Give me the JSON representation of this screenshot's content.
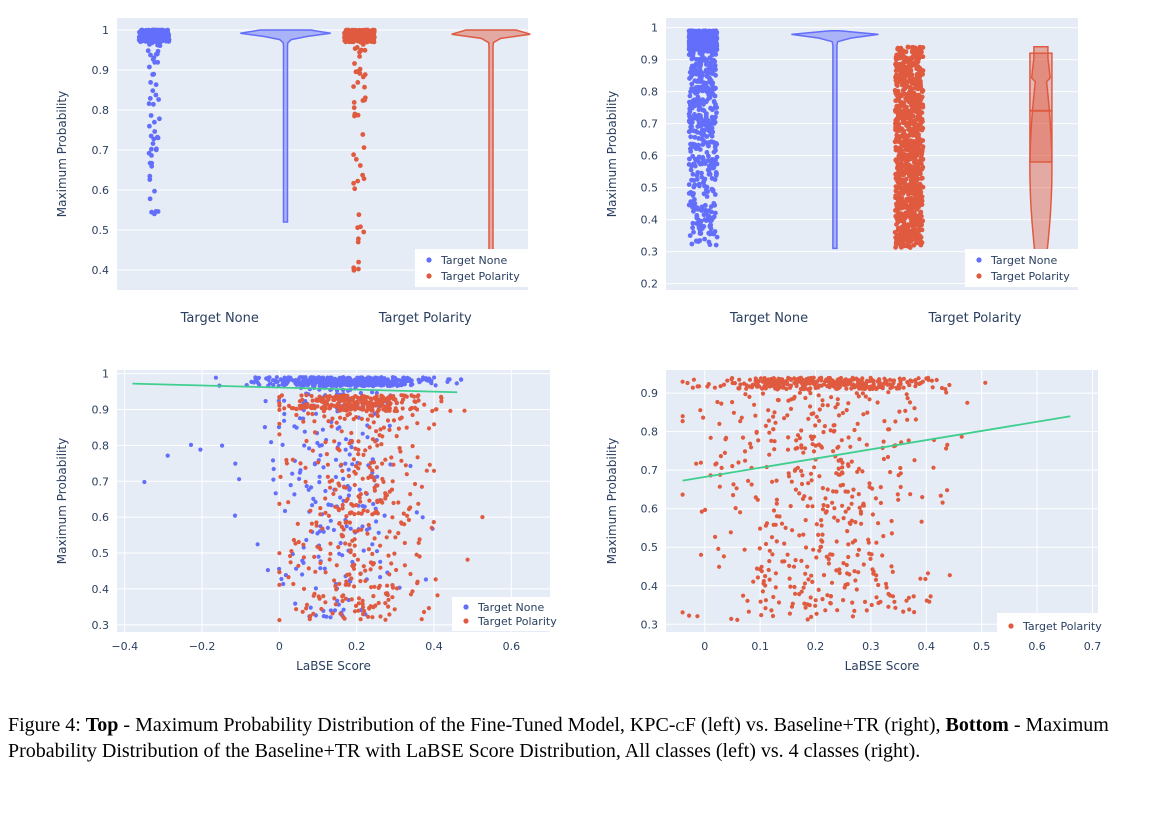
{
  "palette": {
    "target_none": "#636efa",
    "target_polarity": "#e05a3f",
    "trend": "#3ecf8e",
    "plot_bg": "#e5ecf6",
    "grid": "#ffffff"
  },
  "chart_data": [
    {
      "id": "top-left",
      "type": "violin-strip",
      "ylabel": "Maximum Probability",
      "ylim": [
        0.35,
        1.03
      ],
      "yticks": [
        "0.4",
        "0.5",
        "0.6",
        "0.7",
        "0.8",
        "0.9",
        "1"
      ],
      "categories": [
        "Target None",
        "Target Polarity"
      ],
      "legend": {
        "placement": "bottom-right",
        "entries": [
          "Target None",
          "Target Polarity"
        ]
      },
      "series": [
        {
          "name": "Target None",
          "strip_range": [
            0.53,
            1.0
          ],
          "violin_range": [
            0.52,
            1.0
          ],
          "density_peak": 0.995
        },
        {
          "name": "Target Polarity",
          "strip_range": [
            0.38,
            1.0
          ],
          "violin_range": [
            0.37,
            1.0
          ],
          "density_peak": 0.995
        }
      ]
    },
    {
      "id": "top-right",
      "type": "violin-strip",
      "ylabel": "Maximum Probability",
      "ylim": [
        0.18,
        1.03
      ],
      "yticks": [
        "0.2",
        "0.3",
        "0.4",
        "0.5",
        "0.6",
        "0.7",
        "0.8",
        "0.9",
        "1"
      ],
      "categories": [
        "Target None",
        "Target Polarity"
      ],
      "legend": {
        "placement": "bottom-right",
        "entries": [
          "Target None",
          "Target Polarity"
        ]
      },
      "series": [
        {
          "name": "Target None",
          "strip_range": [
            0.32,
            0.99
          ],
          "violin_range": [
            0.31,
            0.99
          ],
          "density_peak": 0.98
        },
        {
          "name": "Target Polarity",
          "strip_range": [
            0.31,
            0.94
          ],
          "violin_range": [
            0.21,
            0.94
          ],
          "box": {
            "q1": 0.58,
            "median": 0.74,
            "q3": 0.92
          }
        }
      ]
    },
    {
      "id": "bottom-left",
      "type": "scatter",
      "xlabel": "LaBSE Score",
      "ylabel": "Maximum Probability",
      "xlim": [
        -0.42,
        0.7
      ],
      "ylim": [
        0.28,
        1.01
      ],
      "xticks": [
        "−0.4",
        "−0.2",
        "0",
        "0.2",
        "0.4",
        "0.6"
      ],
      "yticks": [
        "0.3",
        "0.4",
        "0.5",
        "0.6",
        "0.7",
        "0.8",
        "0.9",
        "1"
      ],
      "legend": {
        "placement": "bottom-right",
        "entries": [
          "Target None",
          "Target Polarity"
        ]
      },
      "trendlines": [
        {
          "x": [
            -0.38,
            0.46
          ],
          "y": [
            0.972,
            0.948
          ]
        }
      ],
      "series": [
        {
          "name": "Target None",
          "x_range": [
            -0.38,
            0.47
          ],
          "y_range": [
            0.32,
            0.99
          ],
          "count": 700
        },
        {
          "name": "Target Polarity",
          "x_range": [
            0.0,
            0.66
          ],
          "y_range": [
            0.31,
            0.94
          ],
          "count": 650
        }
      ]
    },
    {
      "id": "bottom-right",
      "type": "scatter",
      "xlabel": "LaBSE Score",
      "ylabel": "Maximum Probability",
      "xlim": [
        -0.07,
        0.71
      ],
      "ylim": [
        0.28,
        0.96
      ],
      "xticks": [
        "0",
        "0.1",
        "0.2",
        "0.3",
        "0.4",
        "0.5",
        "0.6",
        "0.7"
      ],
      "yticks": [
        "0.3",
        "0.4",
        "0.5",
        "0.6",
        "0.7",
        "0.8",
        "0.9"
      ],
      "legend": {
        "placement": "bottom-right",
        "entries": [
          "Target Polarity"
        ]
      },
      "trendlines": [
        {
          "x": [
            -0.04,
            0.66
          ],
          "y": [
            0.673,
            0.84
          ]
        }
      ],
      "series": [
        {
          "name": "Target Polarity",
          "x_range": [
            -0.04,
            0.66
          ],
          "y_range": [
            0.31,
            0.94
          ],
          "count": 800
        }
      ]
    }
  ],
  "caption": {
    "lead": "Figure 4: ",
    "top_label": "Top",
    "part1": " - Maximum Probability Distribution of the Fine-Tuned Model, ",
    "kpc": "KPC-cF",
    "part2": " (left) vs. Baseline+TR (right), ",
    "bottom_label": "Bottom",
    "part3": " - Maximum Probability Distribution of the Baseline+TR with LaBSE Score Distribution, All classes (left) vs. 4 classes (right)."
  }
}
